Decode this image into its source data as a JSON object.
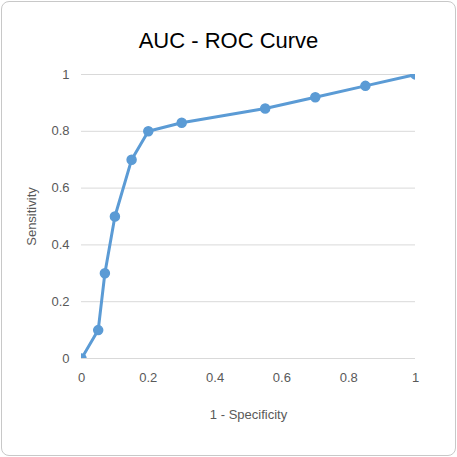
{
  "chart_data": {
    "type": "line",
    "title": "AUC - ROC Curve",
    "x_label": "1 - Specificity",
    "y_label": "Sensitivity",
    "x": [
      0,
      0.05,
      0.07,
      0.1,
      0.15,
      0.2,
      0.3,
      0.55,
      0.7,
      0.85,
      1
    ],
    "values": [
      0,
      0.1,
      0.3,
      0.5,
      0.7,
      0.8,
      0.83,
      0.88,
      0.92,
      0.96,
      1
    ],
    "color": "#5b9bd5",
    "marker": "circle",
    "xlim": [
      0,
      1
    ],
    "xticks": [
      0,
      0.2,
      0.4,
      0.6,
      0.8,
      1
    ],
    "ylim": [
      0,
      1
    ],
    "yticks": [
      0,
      0.2,
      0.4,
      0.6,
      0.8,
      1
    ],
    "grid": true
  }
}
